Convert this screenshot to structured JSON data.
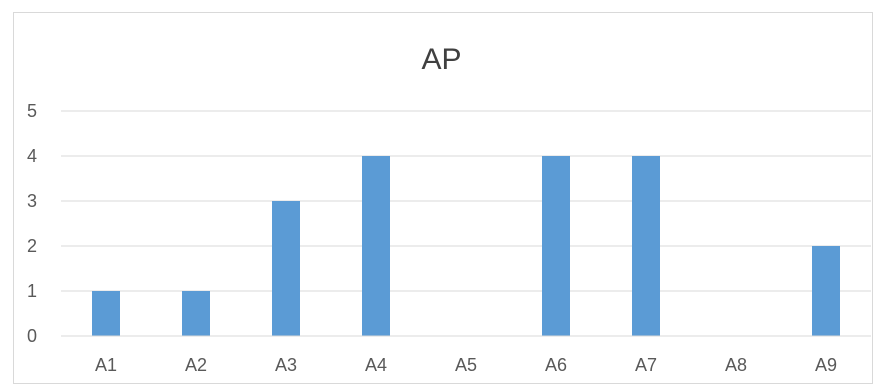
{
  "chart_data": {
    "type": "bar",
    "title": "AP",
    "categories": [
      "A1",
      "A2",
      "A3",
      "A4",
      "A5",
      "A6",
      "A7",
      "A8",
      "A9"
    ],
    "values": [
      1,
      1,
      3,
      4,
      0,
      4,
      4,
      0,
      2
    ],
    "ylim": [
      0,
      5
    ],
    "yticks": [
      "0",
      "1",
      "2",
      "3",
      "4",
      "5"
    ],
    "grid": true,
    "legend": "none",
    "bar_color": "#5b9bd5",
    "grid_color": "#d9d9d9",
    "axis_color": "#d9d9d9"
  }
}
